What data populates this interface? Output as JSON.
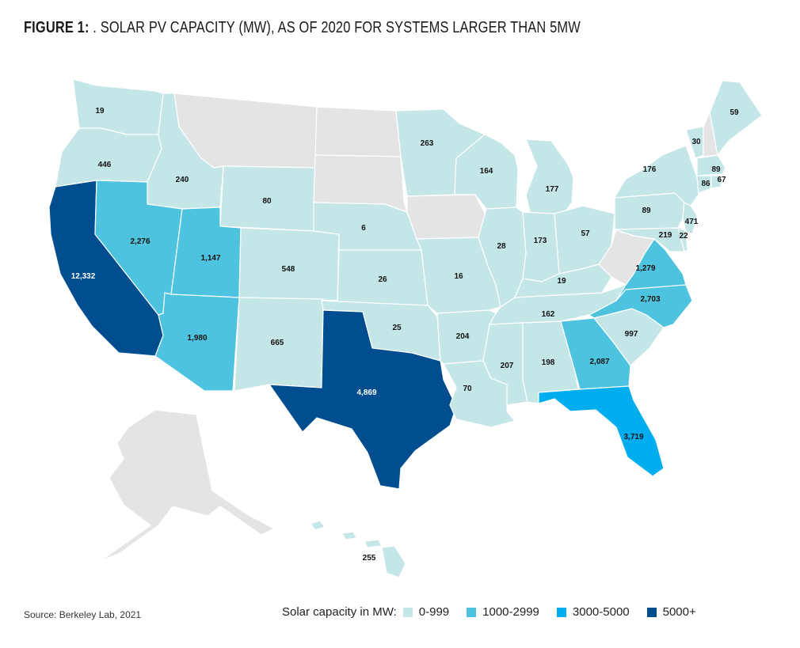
{
  "title": {
    "figure": "FIGURE 1:",
    "text": " . SOLAR PV CAPACITY (MW), AS OF 2020 FOR SYSTEMS LARGER THAN 5MW"
  },
  "source": "Source: Berkeley Lab, 2021",
  "legend": {
    "title": "Solar capacity in MW:",
    "items": [
      {
        "label": "0-999",
        "color": "#c5e6e6"
      },
      {
        "label": "1000-2999",
        "color": "#4ec3e0"
      },
      {
        "label": "3000-5000",
        "color": "#00aeef"
      },
      {
        "label": "5000+",
        "color": "#004e8f"
      }
    ]
  },
  "map_data": {
    "no_data_color": "#e4e4e4",
    "states": {
      "WA": "19",
      "OR": "446",
      "ID": "240",
      "WY": "80",
      "CA": "12,332",
      "NV": "2,276",
      "UT": "1,147",
      "CO": "548",
      "AZ": "1,980",
      "NM": "665",
      "TX": "4,869",
      "NE": "6",
      "KS": "26",
      "OK": "25",
      "MN": "263",
      "WI": "164",
      "MI": "177",
      "IL": "28",
      "IN": "173",
      "OH": "57",
      "MO": "16",
      "AR": "204",
      "LA": "70",
      "MS": "207",
      "AL": "198",
      "GA": "2,087",
      "FL": "3,719",
      "SC": "997",
      "NC": "2,703",
      "TN": "162",
      "KY": "19",
      "VA": "1,279",
      "PA": "89",
      "NY": "176",
      "VT": "30",
      "ME": "59",
      "MA": "89",
      "CT": "86",
      "RI": "67",
      "NJ": "471",
      "MD": "219",
      "DE": "22",
      "HI": "255"
    }
  }
}
